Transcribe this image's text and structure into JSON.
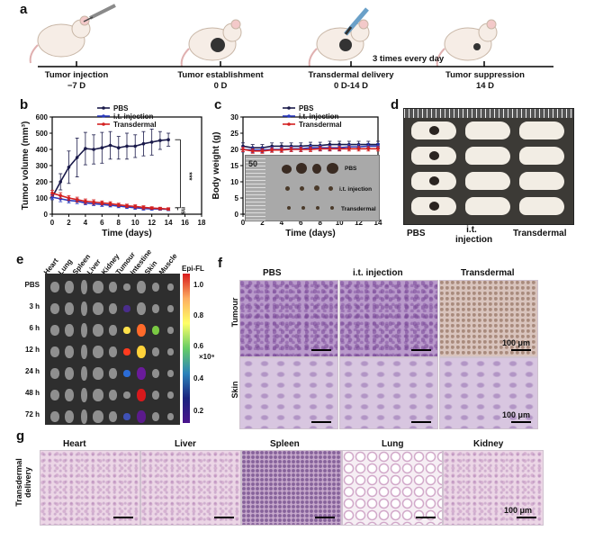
{
  "panels": {
    "a": "a",
    "b": "b",
    "c": "c",
    "d": "d",
    "e": "e",
    "f": "f",
    "g": "g"
  },
  "timeline": {
    "stages": [
      {
        "title": "Tumor injection",
        "day": "−7 D"
      },
      {
        "title": "Tumor establishment",
        "day": "0 D"
      },
      {
        "title": "Transdermal  delivery",
        "day": "0 D-14 D"
      },
      {
        "title": "Tumor suppression",
        "day": "14 D"
      }
    ],
    "frequency": "3 times every day"
  },
  "chart_data": [
    {
      "type": "line",
      "xlabel": "Time (days)",
      "ylabel": "Tumor volume (mm³)",
      "xlim": [
        0,
        18
      ],
      "ylim": [
        0,
        600
      ],
      "xticks": [
        "0",
        "2",
        "4",
        "6",
        "8",
        "10",
        "12",
        "14",
        "16",
        "18"
      ],
      "yticks": [
        "0",
        "100",
        "200",
        "300",
        "400",
        "500",
        "600"
      ],
      "legend": "top-right",
      "x": [
        0,
        1,
        2,
        3,
        4,
        5,
        6,
        7,
        8,
        9,
        10,
        11,
        12,
        13,
        14
      ],
      "series": [
        {
          "name": "PBS",
          "color": "#1a1a4a",
          "values": [
            105,
            200,
            290,
            350,
            405,
            400,
            410,
            425,
            410,
            420,
            420,
            435,
            445,
            455,
            460
          ],
          "errors": [
            15,
            50,
            100,
            120,
            100,
            90,
            95,
            85,
            70,
            80,
            70,
            75,
            80,
            55,
            40
          ]
        },
        {
          "name": "i.t. injection",
          "color": "#2a3bbf",
          "values": [
            105,
            95,
            85,
            80,
            70,
            65,
            60,
            55,
            50,
            45,
            40,
            35,
            33,
            32,
            30
          ],
          "errors": [
            15,
            18,
            15,
            15,
            12,
            12,
            12,
            10,
            10,
            10,
            10,
            10,
            8,
            8,
            8
          ]
        },
        {
          "name": "Transdermal",
          "color": "#d42020",
          "values": [
            130,
            115,
            100,
            90,
            80,
            75,
            70,
            65,
            58,
            52,
            48,
            42,
            38,
            35,
            32
          ],
          "errors": [
            18,
            18,
            15,
            15,
            14,
            14,
            12,
            12,
            10,
            10,
            10,
            10,
            8,
            8,
            8
          ]
        }
      ],
      "annotations": [
        "***",
        "ns"
      ]
    },
    {
      "type": "line",
      "xlabel": "Time (days)",
      "ylabel": "Body weight (g)",
      "xlim": [
        0,
        14
      ],
      "ylim": [
        0,
        30
      ],
      "xticks": [
        "0",
        "2",
        "4",
        "6",
        "8",
        "10",
        "12",
        "14"
      ],
      "yticks": [
        "0",
        "5",
        "10",
        "15",
        "20",
        "25",
        "30"
      ],
      "legend": "top-right",
      "x": [
        0,
        1,
        2,
        3,
        4,
        5,
        6,
        7,
        8,
        9,
        10,
        11,
        12,
        13,
        14
      ],
      "series": [
        {
          "name": "PBS",
          "color": "#1a1a4a",
          "values": [
            21,
            20.5,
            20.5,
            21,
            21,
            21,
            21,
            21.2,
            21.2,
            21.5,
            21.5,
            21.5,
            21.5,
            21.5,
            21.5
          ],
          "errors": [
            1,
            1,
            1,
            1,
            1,
            1,
            1,
            1,
            1,
            1,
            1,
            1,
            1,
            1,
            1
          ]
        },
        {
          "name": "i.t. injection",
          "color": "#2a3bbf",
          "values": [
            20,
            19.8,
            19.8,
            20,
            20,
            20.2,
            20.2,
            20.5,
            20.5,
            20.5,
            20.5,
            20.8,
            20.8,
            21,
            21
          ],
          "errors": [
            0.8,
            0.8,
            0.8,
            0.8,
            0.8,
            0.8,
            0.8,
            0.8,
            0.8,
            0.8,
            0.8,
            0.8,
            0.8,
            0.8,
            0.8
          ]
        },
        {
          "name": "Transdermal",
          "color": "#d42020",
          "values": [
            20,
            19.5,
            19.5,
            19.8,
            19.8,
            20,
            20,
            20,
            20.2,
            20.2,
            20.2,
            20.2,
            20.2,
            20.2,
            20.2
          ],
          "errors": [
            0.7,
            0.7,
            0.7,
            0.7,
            0.7,
            0.7,
            0.7,
            0.7,
            0.7,
            0.7,
            0.7,
            0.7,
            0.7,
            0.7,
            0.7
          ]
        }
      ],
      "inset": {
        "labels": [
          "PBS",
          "i.t. injection",
          "Transdermal"
        ],
        "ruler": "50"
      }
    }
  ],
  "panel_d": {
    "labels": [
      "PBS",
      "i.t.\ninjection",
      "Transdermal"
    ]
  },
  "panel_e": {
    "organs": [
      "Heart",
      "Lung",
      "Spleen",
      "Liver",
      "Kidney",
      "Tumour",
      "Intestine",
      "Skin",
      "Muscle"
    ],
    "rows": [
      "PBS",
      "3 h",
      "6 h",
      "12 h",
      "24 h",
      "48 h",
      "72 h"
    ],
    "colorbar": {
      "title": "Epi-FL",
      "ticks": [
        "1.0",
        "0.8",
        "0.6",
        "0.4",
        "0.2"
      ],
      "unit": "×10⁹"
    }
  },
  "panel_f": {
    "columns": [
      "PBS",
      "i.t. injection",
      "Transdermal"
    ],
    "rows": [
      "Tumour",
      "Skin"
    ],
    "scale": "100 μm"
  },
  "panel_g": {
    "side_label": "Transdermal\ndelivery",
    "organs": [
      "Heart",
      "Liver",
      "Spleen",
      "Lung",
      "Kidney"
    ],
    "scale": "100 μm"
  }
}
